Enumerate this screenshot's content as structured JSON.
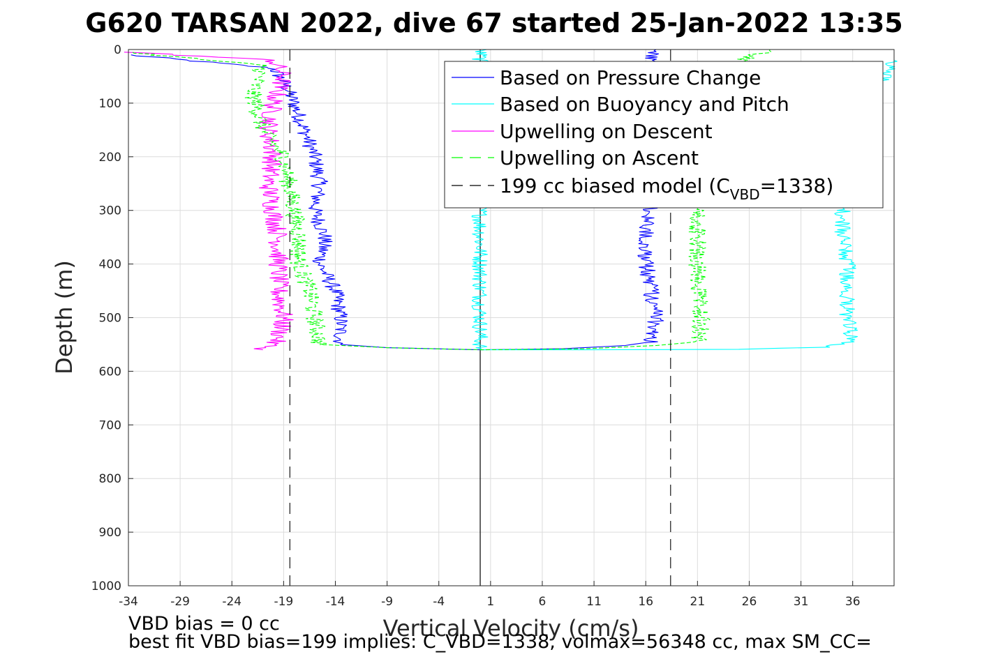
{
  "chart_data": {
    "type": "line",
    "title": "G620 TARSAN 2022, dive 67 started 25-Jan-2022 13:35",
    "xlabel": "Vertical Velocity (cm/s)",
    "ylabel": "Depth (m)",
    "xlim": [
      -34,
      40
    ],
    "ylim": [
      0,
      1000
    ],
    "y_reversed": true,
    "grid": true,
    "xticks": [
      -34,
      -29,
      -24,
      -19,
      -14,
      -9,
      -4,
      1,
      6,
      11,
      16,
      21,
      26,
      31,
      36
    ],
    "yticks": [
      0,
      100,
      200,
      300,
      400,
      500,
      600,
      700,
      800,
      900,
      1000
    ],
    "legend_position": "top-right",
    "legend": [
      {
        "label": "Based on Pressure Change",
        "color": "#0000ff",
        "dash": "solid"
      },
      {
        "label": "Based on Buoyancy and Pitch",
        "color": "#00ffff",
        "dash": "solid"
      },
      {
        "label": "Upwelling on Descent",
        "color": "#ff00ff",
        "dash": "solid"
      },
      {
        "label": "Upwelling on Ascent",
        "color": "#00ff00",
        "dash": "dashed"
      },
      {
        "label_prefix": "199 cc biased model (C",
        "label_sub": "VBD",
        "label_suffix": "=1338)",
        "color": "#000000",
        "dash": "dashed"
      }
    ],
    "series": [
      {
        "name": "Based on Pressure Change",
        "color": "#0000ff",
        "style": "solid",
        "noise": 0.8,
        "points": [
          [
            -34,
            10
          ],
          [
            -20,
            35
          ],
          [
            -19,
            60
          ],
          [
            -18,
            100
          ],
          [
            -17,
            150
          ],
          [
            -16,
            200
          ],
          [
            -15.5,
            250
          ],
          [
            -16,
            300
          ],
          [
            -15,
            350
          ],
          [
            -15.5,
            400
          ],
          [
            -14,
            450
          ],
          [
            -13.5,
            500
          ],
          [
            -13.5,
            550
          ],
          [
            -9,
            556
          ],
          [
            0,
            560
          ],
          [
            8,
            558
          ],
          [
            14,
            552
          ],
          [
            16.5,
            545
          ],
          [
            17,
            500
          ],
          [
            16.5,
            450
          ],
          [
            16,
            400
          ],
          [
            16,
            350
          ],
          [
            16.5,
            300
          ],
          [
            15,
            70
          ],
          [
            17,
            0
          ]
        ]
      },
      {
        "name": "Based on Buoyancy and Pitch",
        "color": "#00ffff",
        "style": "solid",
        "noise": 0.8,
        "points": [
          [
            0,
            0
          ],
          [
            0,
            560
          ],
          [
            10,
            560
          ],
          [
            25,
            559
          ],
          [
            33,
            555
          ],
          [
            36,
            545
          ],
          [
            35.5,
            500
          ],
          [
            35.5,
            450
          ],
          [
            35.5,
            400
          ],
          [
            35,
            350
          ],
          [
            35,
            300
          ],
          [
            36,
            120
          ],
          [
            38,
            80
          ],
          [
            40,
            20
          ]
        ]
      },
      {
        "name": "Upwelling on Descent",
        "color": "#ff00ff",
        "style": "solid",
        "noise": 1.0,
        "points": [
          [
            -34,
            5
          ],
          [
            -20,
            20
          ],
          [
            -19,
            50
          ],
          [
            -20,
            100
          ],
          [
            -20.5,
            150
          ],
          [
            -20,
            200
          ],
          [
            -20.5,
            250
          ],
          [
            -20,
            300
          ],
          [
            -19.5,
            350
          ],
          [
            -19.5,
            400
          ],
          [
            -19.5,
            450
          ],
          [
            -19,
            500
          ],
          [
            -19.5,
            540
          ],
          [
            -21,
            560
          ]
        ]
      },
      {
        "name": "Upwelling on Ascent",
        "color": "#00ff00",
        "style": "dashed",
        "noise": 0.9,
        "points": [
          [
            -34,
            5
          ],
          [
            -21,
            30
          ],
          [
            -22,
            80
          ],
          [
            -21,
            150
          ],
          [
            -19,
            200
          ],
          [
            -18.5,
            250
          ],
          [
            -18,
            300
          ],
          [
            -17.5,
            350
          ],
          [
            -17.5,
            400
          ],
          [
            -16.5,
            450
          ],
          [
            -16,
            500
          ],
          [
            -15.5,
            550
          ],
          [
            -9,
            556
          ],
          [
            0,
            560
          ],
          [
            10,
            558
          ],
          [
            17,
            552
          ],
          [
            21,
            545
          ],
          [
            21.5,
            500
          ],
          [
            21,
            450
          ],
          [
            21,
            400
          ],
          [
            21,
            350
          ],
          [
            21,
            300
          ],
          [
            22,
            100
          ],
          [
            25,
            20
          ],
          [
            28,
            0
          ]
        ]
      },
      {
        "name": "199 cc biased model (C_VBD=1338) descent",
        "color": "#000000",
        "style": "dashed",
        "noise": 0,
        "points": [
          [
            -18.4,
            0
          ],
          [
            -18.4,
            1000
          ]
        ]
      },
      {
        "name": "199 cc biased model (C_VBD=1338) ascent",
        "color": "#000000",
        "style": "dashed",
        "noise": 0,
        "points": [
          [
            18.4,
            0
          ],
          [
            18.4,
            1000
          ]
        ]
      }
    ],
    "reference_lines": [
      {
        "x": 0,
        "color": "#000000",
        "style": "solid"
      }
    ],
    "annotations": [
      "VBD bias = 0 cc",
      "best fit VBD bias=199 implies: C_VBD=1338, volmax=56348 cc, max SM_CC="
    ]
  }
}
